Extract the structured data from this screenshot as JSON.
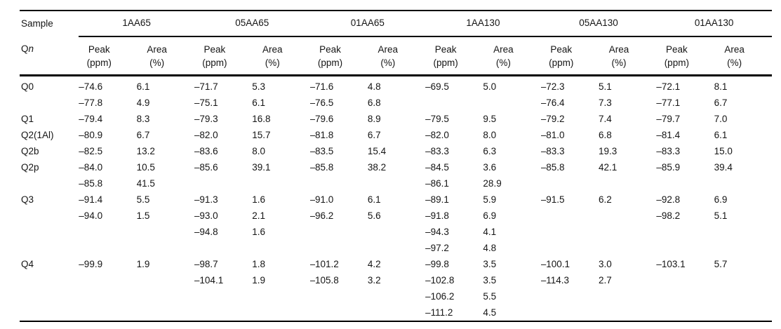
{
  "table": {
    "corner_label": "Sample",
    "qn_label": {
      "prefix": "Q",
      "italic": "n"
    },
    "groups": [
      "1AA65",
      "05AA65",
      "01AA65",
      "1AA130",
      "05AA130",
      "01AA130"
    ],
    "subheader": {
      "peak_line1": "Peak",
      "peak_line2": "(ppm)",
      "area_line1": "Area",
      "area_line2": "(%)"
    },
    "rows": [
      {
        "label": "Q0",
        "values": [
          "–74.6",
          "6.1",
          "–71.7",
          "5.3",
          "–71.6",
          "4.8",
          "–69.5",
          "5.0",
          "–72.3",
          "5.1",
          "–72.1",
          "8.1"
        ]
      },
      {
        "label": "",
        "values": [
          "–77.8",
          "4.9",
          "–75.1",
          "6.1",
          "–76.5",
          "6.8",
          "",
          "",
          "–76.4",
          "7.3",
          "–77.1",
          "6.7"
        ]
      },
      {
        "label": "Q1",
        "values": [
          "–79.4",
          "8.3",
          "–79.3",
          "16.8",
          "–79.6",
          "8.9",
          "–79.5",
          "9.5",
          "–79.2",
          "7.4",
          "–79.7",
          "7.0"
        ]
      },
      {
        "label": "Q2(1Al)",
        "values": [
          "–80.9",
          "6.7",
          "–82.0",
          "15.7",
          "–81.8",
          "6.7",
          "–82.0",
          "8.0",
          "–81.0",
          "6.8",
          "–81.4",
          "6.1"
        ]
      },
      {
        "label": "Q2b",
        "values": [
          "–82.5",
          "13.2",
          "–83.6",
          "8.0",
          "–83.5",
          "15.4",
          "–83.3",
          "6.3",
          "–83.3",
          "19.3",
          "–83.3",
          "15.0"
        ]
      },
      {
        "label": "Q2p",
        "values": [
          "–84.0",
          "10.5",
          "–85.6",
          "39.1",
          "–85.8",
          "38.2",
          "–84.5",
          "3.6",
          "–85.8",
          "42.1",
          "–85.9",
          "39.4"
        ]
      },
      {
        "label": "",
        "values": [
          "–85.8",
          "41.5",
          "",
          "",
          "",
          "",
          "–86.1",
          "28.9",
          "",
          "",
          "",
          ""
        ]
      },
      {
        "label": "Q3",
        "values": [
          "–91.4",
          "5.5",
          "–91.3",
          "1.6",
          "–91.0",
          "6.1",
          "–89.1",
          "5.9",
          "–91.5",
          "6.2",
          "–92.8",
          "6.9"
        ]
      },
      {
        "label": "",
        "values": [
          "–94.0",
          "1.5",
          "–93.0",
          "2.1",
          "–96.2",
          "5.6",
          "–91.8",
          "6.9",
          "",
          "",
          "–98.2",
          "5.1"
        ]
      },
      {
        "label": "",
        "values": [
          "",
          "",
          "–94.8",
          "1.6",
          "",
          "",
          "–94.3",
          "4.1",
          "",
          "",
          "",
          ""
        ]
      },
      {
        "label": "",
        "values": [
          "",
          "",
          "",
          "",
          "",
          "",
          "–97.2",
          "4.8",
          "",
          "",
          "",
          ""
        ]
      },
      {
        "label": "Q4",
        "values": [
          "–99.9",
          "1.9",
          "–98.7",
          "1.8",
          "–101.2",
          "4.2",
          "–99.8",
          "3.5",
          "–100.1",
          "3.0",
          "–103.1",
          "5.7"
        ]
      },
      {
        "label": "",
        "values": [
          "",
          "",
          "–104.1",
          "1.9",
          "–105.8",
          "3.2",
          "–102.8",
          "3.5",
          "–114.3",
          "2.7",
          "",
          ""
        ]
      },
      {
        "label": "",
        "values": [
          "",
          "",
          "",
          "",
          "",
          "",
          "–106.2",
          "5.5",
          "",
          "",
          "",
          ""
        ]
      },
      {
        "label": "",
        "values": [
          "",
          "",
          "",
          "",
          "",
          "",
          "–111.2",
          "4.5",
          "",
          "",
          "",
          ""
        ]
      }
    ]
  }
}
